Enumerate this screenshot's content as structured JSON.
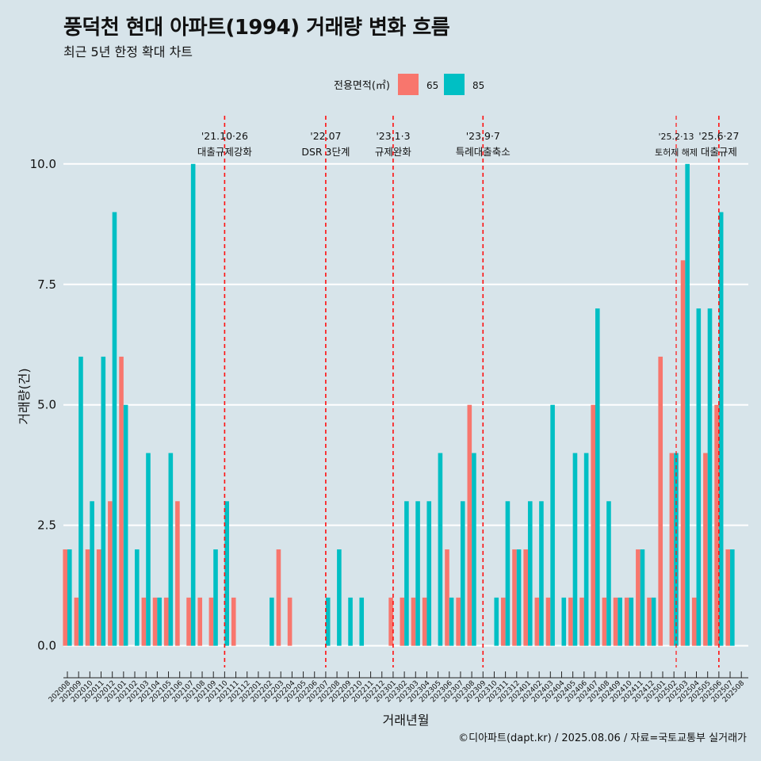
{
  "chart_data": {
    "type": "bar",
    "title": "풍덕천 현대 아파트(1994) 거래량 변화 흐름",
    "subtitle": "최근 5년 한정 확대 차트",
    "caption": "©디아파트(dapt.kr) / 2025.08.06 / 자료=국토교통부 실거래가",
    "xlabel": "거래년월",
    "ylabel": "거래량(건)",
    "ylim": [
      -0.45,
      11
    ],
    "yticks": [
      0,
      2.5,
      5,
      7.5,
      10
    ],
    "ytick_labels": [
      "0.0",
      "2.5",
      "5.0",
      "7.5",
      "10.0"
    ],
    "legend": {
      "title": "전용면적(㎡)",
      "position": "top"
    },
    "categories": [
      "202008",
      "202009",
      "202010",
      "202011",
      "202012",
      "202101",
      "202102",
      "202103",
      "202104",
      "202105",
      "202106",
      "202107",
      "202108",
      "202109",
      "202110",
      "202111",
      "202112",
      "202201",
      "202202",
      "202203",
      "202204",
      "202205",
      "202206",
      "202207",
      "202208",
      "202209",
      "202210",
      "202211",
      "202212",
      "202301",
      "202302",
      "202303",
      "202304",
      "202305",
      "202306",
      "202307",
      "202308",
      "202309",
      "202310",
      "202311",
      "202312",
      "202401",
      "202402",
      "202403",
      "202404",
      "202405",
      "202406",
      "202407",
      "202408",
      "202409",
      "202410",
      "202411",
      "202412",
      "202501",
      "202502",
      "202503",
      "202504",
      "202505",
      "202506",
      "202507",
      "202508"
    ],
    "series": [
      {
        "name": "65",
        "color": "#f8766d",
        "values": [
          2,
          1,
          2,
          2,
          3,
          6,
          0,
          1,
          1,
          1,
          3,
          1,
          1,
          1,
          0,
          1,
          0,
          0,
          0,
          2,
          1,
          0,
          0,
          0,
          0,
          0,
          0,
          0,
          0,
          1,
          1,
          1,
          1,
          0,
          2,
          1,
          5,
          0,
          0,
          1,
          2,
          2,
          1,
          1,
          0,
          1,
          1,
          5,
          1,
          1,
          1,
          2,
          1,
          6,
          4,
          8,
          1,
          4,
          5,
          2,
          0
        ]
      },
      {
        "name": "85",
        "color": "#00bfc4",
        "values": [
          2,
          6,
          3,
          6,
          9,
          5,
          2,
          4,
          1,
          4,
          0,
          10,
          0,
          2,
          3,
          0,
          0,
          0,
          1,
          0,
          0,
          0,
          0,
          1,
          2,
          1,
          1,
          0,
          0,
          0,
          3,
          3,
          3,
          4,
          1,
          3,
          4,
          0,
          1,
          3,
          2,
          3,
          3,
          5,
          1,
          4,
          4,
          7,
          3,
          1,
          1,
          2,
          1,
          0,
          4,
          10,
          7,
          7,
          9,
          2,
          0
        ]
      }
    ],
    "events": [
      {
        "label": "'21.10·26",
        "sub": "대출규제강화",
        "month": "202110",
        "offset": 0
      },
      {
        "label": "'22.07",
        "sub": "DSR 3단계",
        "month": "202207",
        "offset": 0
      },
      {
        "label": "'23.1·3",
        "sub": "규제완화",
        "month": "202301",
        "offset": 0
      },
      {
        "label": "'23.9·7",
        "sub": "특례대출축소",
        "month": "202309",
        "offset": 0
      },
      {
        "label": "'25.2·13",
        "sub": "토허제 해제",
        "month": "202502",
        "offset": 0.2
      },
      {
        "label": "'25.6·27",
        "sub": "대출규제",
        "month": "202506",
        "offset": 0
      }
    ]
  }
}
